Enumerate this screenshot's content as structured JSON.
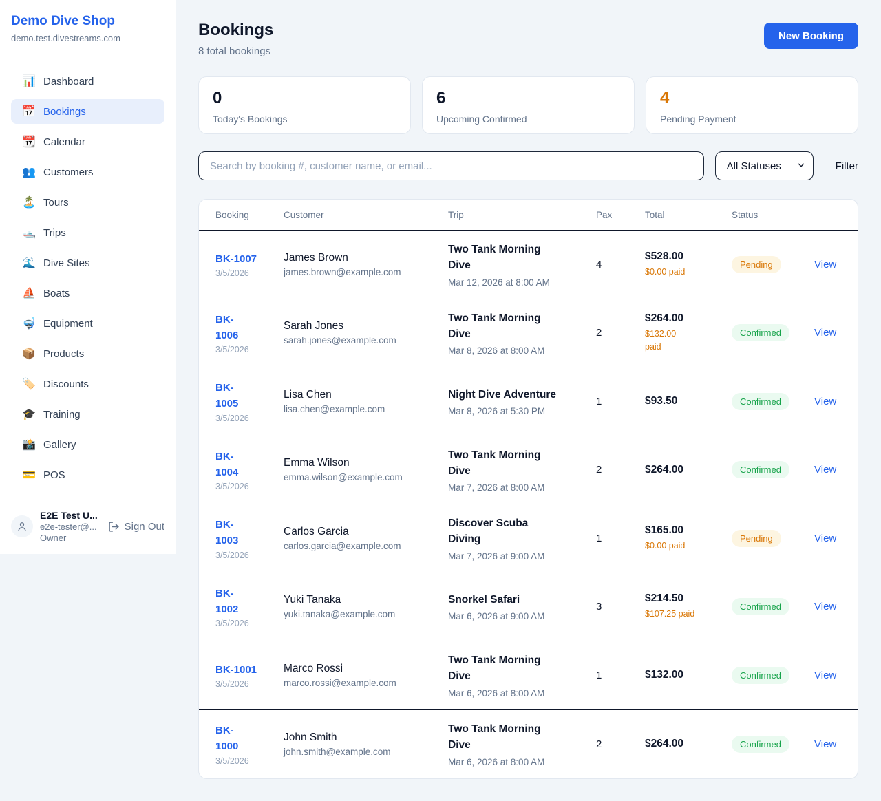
{
  "sidebar": {
    "brand": {
      "name": "Demo Dive Shop",
      "domain": "demo.test.divestreams.com"
    },
    "nav": [
      {
        "label": "Dashboard",
        "icon": "bar-chart-icon",
        "glyph": "📊",
        "active": false
      },
      {
        "label": "Bookings",
        "icon": "calendar-date-icon",
        "glyph": "📅",
        "active": true
      },
      {
        "label": "Calendar",
        "icon": "tear-calendar-icon",
        "glyph": "📆",
        "active": false
      },
      {
        "label": "Customers",
        "icon": "people-icon",
        "glyph": "👥",
        "active": false
      },
      {
        "label": "Tours",
        "icon": "island-icon",
        "glyph": "🏝️",
        "active": false
      },
      {
        "label": "Trips",
        "icon": "speedboat-icon",
        "glyph": "🛥️",
        "active": false
      },
      {
        "label": "Dive Sites",
        "icon": "wave-icon",
        "glyph": "🌊",
        "active": false
      },
      {
        "label": "Boats",
        "icon": "sailboat-icon",
        "glyph": "⛵",
        "active": false
      },
      {
        "label": "Equipment",
        "icon": "diving-mask-icon",
        "glyph": "🤿",
        "active": false
      },
      {
        "label": "Products",
        "icon": "package-icon",
        "glyph": "📦",
        "active": false
      },
      {
        "label": "Discounts",
        "icon": "tag-icon",
        "glyph": "🏷️",
        "active": false
      },
      {
        "label": "Training",
        "icon": "graduation-cap-icon",
        "glyph": "🎓",
        "active": false
      },
      {
        "label": "Gallery",
        "icon": "camera-icon",
        "glyph": "📸",
        "active": false
      },
      {
        "label": "POS",
        "icon": "credit-card-icon",
        "glyph": "💳",
        "active": false
      }
    ],
    "user": {
      "name": "E2E Test U...",
      "email": "e2e-tester@...",
      "role": "Owner",
      "signout_label": "Sign Out"
    }
  },
  "header": {
    "title": "Bookings",
    "subtitle": "8 total bookings",
    "new_booking_label": "New Booking"
  },
  "stats": [
    {
      "value": "0",
      "label": "Today's Bookings",
      "accent": false
    },
    {
      "value": "6",
      "label": "Upcoming Confirmed",
      "accent": false
    },
    {
      "value": "4",
      "label": "Pending Payment",
      "accent": true
    }
  ],
  "filters": {
    "search_placeholder": "Search by booking #, customer name, or email...",
    "status_selected": "All Statuses",
    "filter_label": "Filter"
  },
  "table": {
    "columns": [
      "Booking",
      "Customer",
      "Trip",
      "Pax",
      "Total",
      "Status",
      ""
    ],
    "rows": [
      {
        "id": "BK-1007",
        "date": "3/5/2026",
        "customer": "James Brown",
        "email": "james.brown@example.com",
        "trip": "Two Tank Morning\nDive",
        "trip_date": "Mar 12, 2026 at 8:00 AM",
        "pax": "4",
        "total": "$528.00",
        "paid": "$0.00 paid",
        "status": "Pending",
        "action": "View"
      },
      {
        "id": "BK-\n1006",
        "date": "3/5/2026",
        "customer": "Sarah Jones",
        "email": "sarah.jones@example.com",
        "trip": "Two Tank Morning\nDive",
        "trip_date": "Mar 8, 2026 at 8:00 AM",
        "pax": "2",
        "total": "$264.00",
        "paid": "$132.00\npaid",
        "status": "Confirmed",
        "action": "View"
      },
      {
        "id": "BK-\n1005",
        "date": "3/5/2026",
        "customer": "Lisa Chen",
        "email": "lisa.chen@example.com",
        "trip": "Night Dive Adventure",
        "trip_date": "Mar 8, 2026 at 5:30 PM",
        "pax": "1",
        "total": "$93.50",
        "paid": null,
        "status": "Confirmed",
        "action": "View"
      },
      {
        "id": "BK-\n1004",
        "date": "3/5/2026",
        "customer": "Emma Wilson",
        "email": "emma.wilson@example.com",
        "trip": "Two Tank Morning\nDive",
        "trip_date": "Mar 7, 2026 at 8:00 AM",
        "pax": "2",
        "total": "$264.00",
        "paid": null,
        "status": "Confirmed",
        "action": "View"
      },
      {
        "id": "BK-\n1003",
        "date": "3/5/2026",
        "customer": "Carlos Garcia",
        "email": "carlos.garcia@example.com",
        "trip": "Discover Scuba\nDiving",
        "trip_date": "Mar 7, 2026 at 9:00 AM",
        "pax": "1",
        "total": "$165.00",
        "paid": "$0.00 paid",
        "status": "Pending",
        "action": "View"
      },
      {
        "id": "BK-\n1002",
        "date": "3/5/2026",
        "customer": "Yuki Tanaka",
        "email": "yuki.tanaka@example.com",
        "trip": "Snorkel Safari",
        "trip_date": "Mar 6, 2026 at 9:00 AM",
        "pax": "3",
        "total": "$214.50",
        "paid": "$107.25 paid",
        "status": "Confirmed",
        "action": "View"
      },
      {
        "id": "BK-1001",
        "date": "3/5/2026",
        "customer": "Marco Rossi",
        "email": "marco.rossi@example.com",
        "trip": "Two Tank Morning\nDive",
        "trip_date": "Mar 6, 2026 at 8:00 AM",
        "pax": "1",
        "total": "$132.00",
        "paid": null,
        "status": "Confirmed",
        "action": "View"
      },
      {
        "id": "BK-\n1000",
        "date": "3/5/2026",
        "customer": "John Smith",
        "email": "john.smith@example.com",
        "trip": "Two Tank Morning\nDive",
        "trip_date": "Mar 6, 2026 at 8:00 AM",
        "pax": "2",
        "total": "$264.00",
        "paid": null,
        "status": "Confirmed",
        "action": "View"
      }
    ]
  },
  "colors": {
    "accent_blue": "#2563eb",
    "accent_orange": "#d97706",
    "confirmed_green": "#16a34a",
    "page_bg": "#f1f5f9"
  }
}
